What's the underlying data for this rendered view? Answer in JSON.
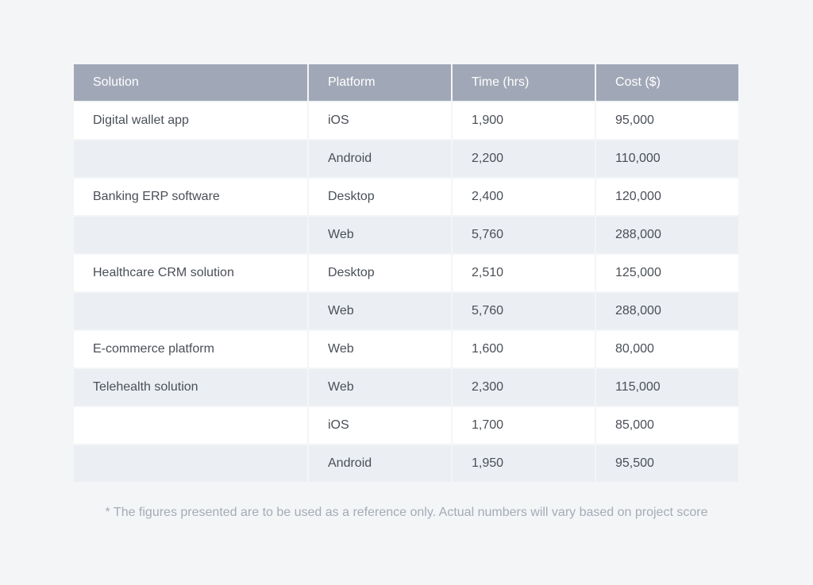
{
  "table": {
    "headers": [
      "Solution",
      "Platform",
      "Time (hrs)",
      "Cost ($)"
    ],
    "rows": [
      [
        "Digital wallet app",
        "iOS",
        "1,900",
        "95,000"
      ],
      [
        "",
        "Android",
        "2,200",
        "110,000"
      ],
      [
        "Banking ERP software",
        "Desktop",
        "2,400",
        "120,000"
      ],
      [
        "",
        "Web",
        "5,760",
        "288,000"
      ],
      [
        "Healthcare CRM solution",
        "Desktop",
        "2,510",
        "125,000"
      ],
      [
        "",
        "Web",
        "5,760",
        "288,000"
      ],
      [
        "E-commerce platform",
        "Web",
        "1,600",
        "80,000"
      ],
      [
        "Telehealth solution",
        "Web",
        "2,300",
        "115,000"
      ],
      [
        "",
        "iOS",
        "1,700",
        "85,000"
      ],
      [
        "",
        "Android",
        "1,950",
        "95,500"
      ]
    ]
  },
  "footnote": "* The figures presented are to be used as a reference only. Actual numbers will vary based on project score",
  "colors": {
    "background": "#f4f5f7",
    "header": "#a0a8b7",
    "row_white": "#ffffff",
    "row_gray": "#ebeef2",
    "text": "#4a4f57",
    "footnote": "#a4abb8"
  }
}
